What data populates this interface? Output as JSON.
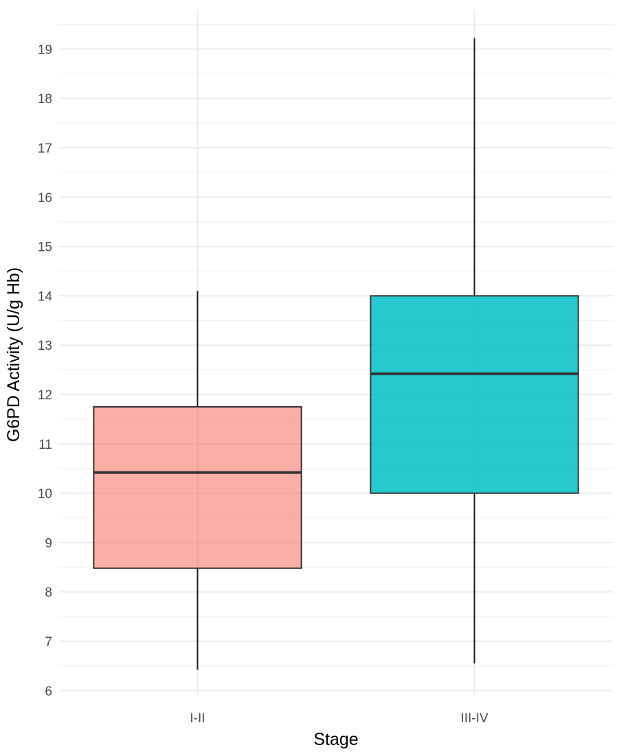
{
  "chart_data": {
    "type": "boxplot",
    "xlabel": "Stage",
    "ylabel": "G6PD Activity (U/g Hb)",
    "ylim": [
      5.9,
      19.8
    ],
    "yticks": [
      6,
      7,
      8,
      9,
      10,
      11,
      12,
      13,
      14,
      15,
      16,
      17,
      18,
      19
    ],
    "grid": true,
    "categories": [
      "I-II",
      "III-IV"
    ],
    "boxes": [
      {
        "category": "I-II",
        "min": 6.42,
        "q1": 8.48,
        "median": 10.42,
        "q3": 11.75,
        "max": 14.1,
        "color": "#F8766D"
      },
      {
        "category": "III-IV",
        "min": 6.55,
        "q1": 10.0,
        "median": 12.42,
        "q3": 14.0,
        "max": 19.22,
        "color": "#00BFC4"
      }
    ]
  }
}
